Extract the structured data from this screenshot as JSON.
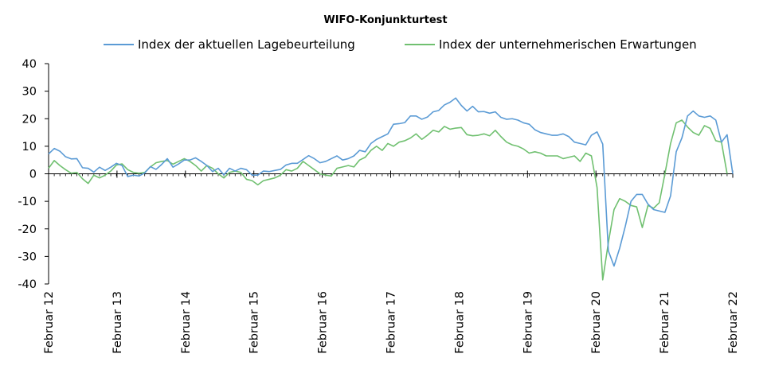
{
  "chart_data": {
    "type": "line",
    "title": "WIFO-Konjunkturtest",
    "xlabel": "",
    "ylabel": "",
    "ylim": [
      -40,
      40
    ],
    "yticks": [
      -40,
      -30,
      -20,
      -10,
      0,
      10,
      20,
      30,
      40
    ],
    "x_tick_labels": [
      "Februar 12",
      "Februar 13",
      "Februar 14",
      "Februar 15",
      "Februar 16",
      "Februar 17",
      "Februar 18",
      "Februar 19",
      "Februar 20",
      "Februar 21",
      "Februar 22"
    ],
    "x_start": "2012-02",
    "x_end": "2022-02",
    "legend_position": "top",
    "grid": false,
    "series": [
      {
        "name": "Index der aktuellen Lagebeurteilung",
        "color": "#5b9bd5",
        "values": [
          7.2,
          9.2,
          8.2,
          6.2,
          5.4,
          5.5,
          2.2,
          2.0,
          0.6,
          2.4,
          1.2,
          2.4,
          3.8,
          3.0,
          -1.0,
          -0.5,
          -0.8,
          0.3,
          2.6,
          1.6,
          3.4,
          5.5,
          2.4,
          3.6,
          5.0,
          5.0,
          5.8,
          4.5,
          3.0,
          0.8,
          2.0,
          -0.4,
          2.0,
          1.0,
          2.0,
          1.5,
          -0.5,
          -0.5,
          1.0,
          0.8,
          1.2,
          1.6,
          3.2,
          3.8,
          3.8,
          5.2,
          6.6,
          5.5,
          4.0,
          4.5,
          5.5,
          6.5,
          5.0,
          5.5,
          6.5,
          8.5,
          8.0,
          11.0,
          12.5,
          13.5,
          14.5,
          18.0,
          18.2,
          18.6,
          21.0,
          21.0,
          19.8,
          20.6,
          22.5,
          23.0,
          25.0,
          26.0,
          27.5,
          24.8,
          22.8,
          24.5,
          22.5,
          22.6,
          22.0,
          22.5,
          20.5,
          19.8,
          20.0,
          19.5,
          18.5,
          18.0,
          16.0,
          15.0,
          14.5,
          14.0,
          14.0,
          14.5,
          13.5,
          11.5,
          11.0,
          10.5,
          14.0,
          15.2,
          10.8,
          -28.0,
          -33.5,
          -27.0,
          -19.0,
          -10.0,
          -7.5,
          -7.5,
          -11.0,
          -13.0,
          -13.5,
          -14.0,
          -8.0,
          8.0,
          13.0,
          21.0,
          22.8,
          21.0,
          20.5,
          21.0,
          19.5,
          11.5,
          14.2,
          0.0
        ]
      },
      {
        "name": "Index der unternehmerischen Erwartungen",
        "color": "#70c070",
        "values": [
          2.0,
          4.8,
          3.0,
          1.5,
          0.2,
          0.5,
          -1.8,
          -3.5,
          -0.5,
          -1.5,
          -0.5,
          1.0,
          3.2,
          3.6,
          1.5,
          0.5,
          0.2,
          0.5,
          2.5,
          4.0,
          4.5,
          4.8,
          3.5,
          4.5,
          5.5,
          4.5,
          3.0,
          1.0,
          3.0,
          2.0,
          0.0,
          -1.5,
          0.5,
          1.0,
          0.5,
          -2.0,
          -2.5,
          -4.0,
          -2.5,
          -2.0,
          -1.5,
          -0.5,
          1.5,
          1.0,
          2.0,
          4.5,
          3.0,
          1.5,
          0.0,
          -0.5,
          -0.8,
          2.0,
          2.5,
          3.0,
          2.5,
          5.0,
          6.0,
          8.5,
          10.0,
          8.5,
          11.0,
          10.0,
          11.5,
          12.0,
          13.0,
          14.5,
          12.5,
          14.0,
          15.8,
          15.2,
          17.2,
          16.2,
          16.6,
          16.8,
          14.2,
          13.8,
          14.0,
          14.5,
          13.8,
          15.8,
          13.5,
          11.5,
          10.5,
          10.0,
          9.0,
          7.5,
          8.0,
          7.5,
          6.5,
          6.5,
          6.5,
          5.5,
          6.0,
          6.5,
          4.5,
          7.5,
          6.5,
          -5.0,
          -38.5,
          -25.0,
          -13.0,
          -9.0,
          -10.0,
          -11.5,
          -12.0,
          -19.5,
          -11.5,
          -12.5,
          -10.5,
          0.0,
          11.0,
          18.5,
          19.5,
          17.0,
          15.0,
          14.0,
          17.5,
          16.5,
          12.0,
          11.5,
          0.0
        ]
      }
    ]
  }
}
